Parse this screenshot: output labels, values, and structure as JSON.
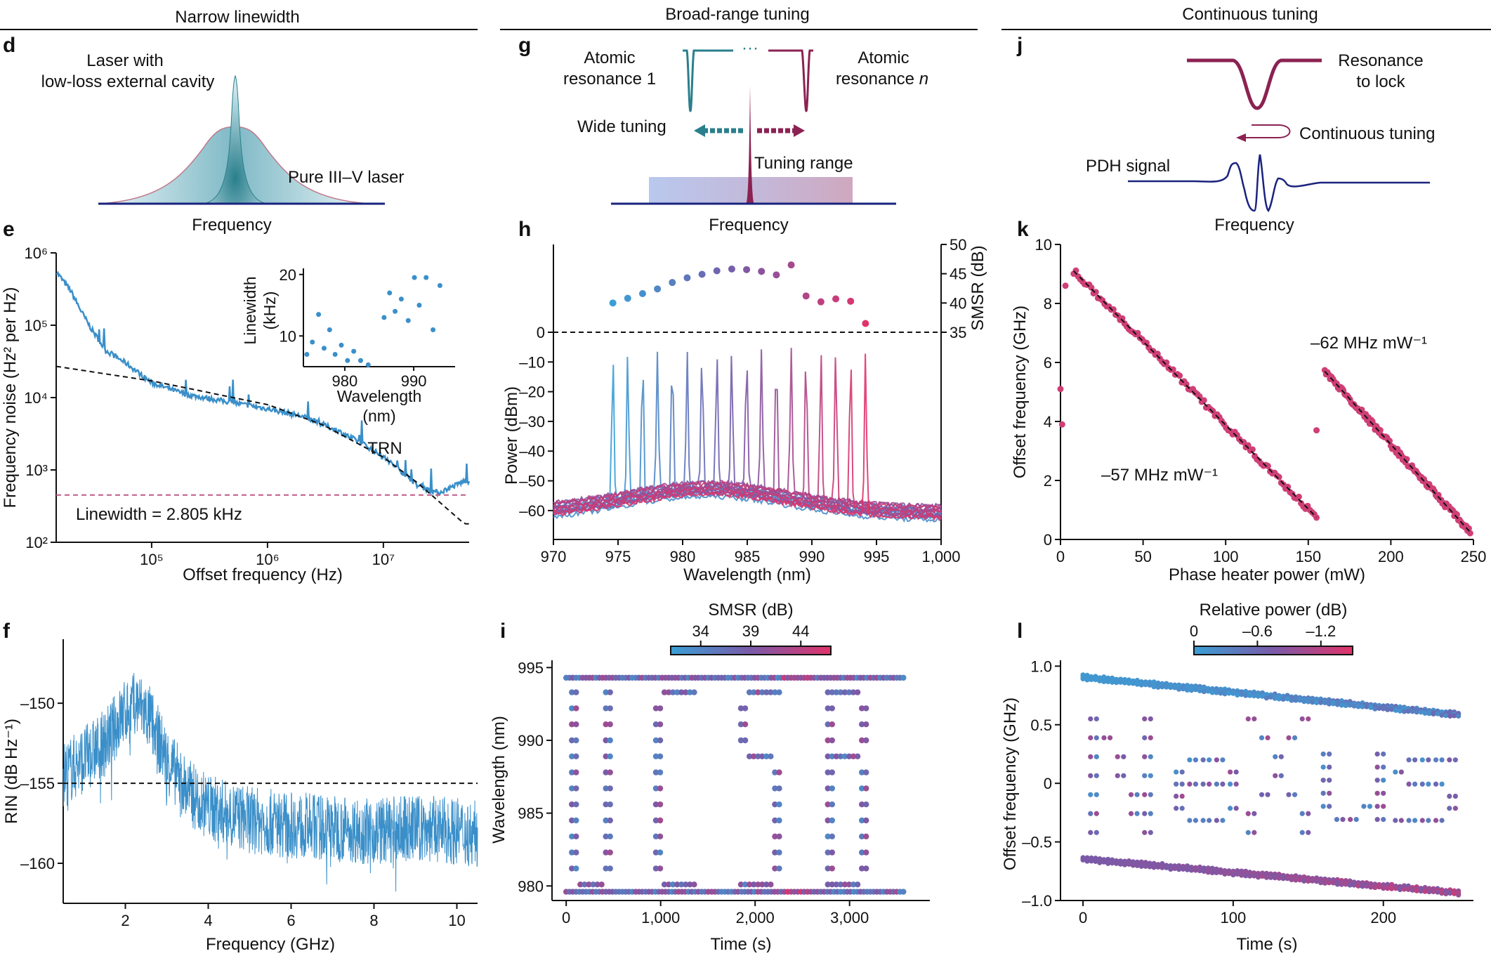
{
  "sections": [
    "Narrow linewidth",
    "Broad-range tuning",
    "Continuous tuning"
  ],
  "panel_letters": [
    "d",
    "e",
    "f",
    "g",
    "h",
    "i",
    "j",
    "k",
    "l"
  ],
  "schematics": {
    "d": {
      "laser_label_1": "Laser with",
      "laser_label_2": "low-loss external cavity",
      "pure_label": "Pure III–V laser",
      "xlabel": "Frequency"
    },
    "g": {
      "res1_a": "Atomic",
      "res1_b": "resonance 1",
      "resn_a": "Atomic",
      "resn_b": "resonance",
      "resn_n": "n",
      "dots": "···",
      "wide": "Wide tuning",
      "range": "Tuning range",
      "xlabel": "Frequency"
    },
    "j": {
      "res_a": "Resonance",
      "res_b": "to lock",
      "cont": "Continuous tuning",
      "pdh": "PDH signal",
      "xlabel": "Frequency"
    }
  },
  "colors": {
    "teal": "#2a7f8c",
    "maroon": "#8b2252",
    "navy": "#1a237e",
    "blue": "#3a8fc9",
    "pink": "#d6336c",
    "purple": "#7a5aa8"
  },
  "chart_data": [
    {
      "id": "e",
      "type": "line",
      "xlabel": "Offset frequency (Hz)",
      "ylabel": "Frequency noise (Hz² per Hz)",
      "xscale": "log",
      "yscale": "log",
      "xlim": [
        15000,
        55000000
      ],
      "ylim": [
        100,
        1000000
      ],
      "xticks": [
        "10⁵",
        "10⁶",
        "10⁷"
      ],
      "yticks": [
        "10²",
        "10³",
        "10⁴",
        "10⁵",
        "10⁶"
      ],
      "series": [
        {
          "values_x": [
            15000,
            20000,
            25000,
            30000,
            40000,
            60000,
            100000,
            200000,
            500000,
            1000000,
            2000000,
            4000000,
            7000000,
            10000000,
            15000000,
            20000000,
            30000000,
            50000000
          ],
          "values_y": [
            550000,
            300000,
            150000,
            90000,
            45000,
            30000,
            16000,
            11000,
            8500,
            7000,
            5500,
            3500,
            2200,
            1500,
            900,
            600,
            480,
            700
          ]
        }
      ],
      "trn_fit": {
        "x": [
          15000,
          100000,
          1000000,
          3000000,
          10000000,
          20000000,
          50000000
        ],
        "y": [
          27000,
          17000,
          8000,
          4200,
          1500,
          650,
          180
        ]
      },
      "linewidth_level": 450,
      "annotations": {
        "trn": "TRN",
        "linewidth": "Linewidth = 2.805 kHz"
      },
      "inset": {
        "xlabel": "Wavelength",
        "xlabel2": "(nm)",
        "ylabel": "Linewidth",
        "ylabel2": "(kHz)",
        "xticks": [
          "980",
          "990"
        ],
        "yticks": [
          "10",
          "20"
        ],
        "xlim": [
          974,
          996
        ],
        "ylim": [
          5,
          21
        ],
        "points": [
          [
            974.5,
            7
          ],
          [
            975.3,
            9
          ],
          [
            976.2,
            13.5
          ],
          [
            977,
            8
          ],
          [
            977.8,
            11
          ],
          [
            978.6,
            7
          ],
          [
            979.5,
            8.5
          ],
          [
            980.4,
            6
          ],
          [
            981.3,
            7.5
          ],
          [
            982.3,
            6
          ],
          [
            983.4,
            5.3
          ],
          [
            985.7,
            13
          ],
          [
            986.5,
            17
          ],
          [
            987.3,
            14
          ],
          [
            988.2,
            16
          ],
          [
            989.2,
            12.5
          ],
          [
            990.1,
            19.5
          ],
          [
            990.8,
            15
          ],
          [
            991.8,
            19.5
          ],
          [
            992.8,
            11
          ],
          [
            993.8,
            18.2
          ]
        ]
      }
    },
    {
      "id": "f",
      "type": "line",
      "xlabel": "Frequency (GHz)",
      "ylabel": "RIN (dB Hz⁻¹)",
      "xlim": [
        0.5,
        10.5
      ],
      "ylim": [
        -162.5,
        -146
      ],
      "xticks": [
        "2",
        "4",
        "6",
        "8",
        "10"
      ],
      "yticks": [
        "–150",
        "–155",
        "–160"
      ],
      "envelope": {
        "x": [
          0.5,
          1,
          1.5,
          2,
          2.3,
          2.6,
          3,
          3.5,
          4,
          5,
          6,
          7,
          8,
          9,
          10,
          10.5
        ],
        "y": [
          -154.5,
          -153.5,
          -152.5,
          -150.5,
          -150,
          -151,
          -153.5,
          -155.5,
          -156.5,
          -157.3,
          -157.6,
          -157.8,
          -158,
          -157.8,
          -158,
          -158.2
        ]
      },
      "reference_level": -155
    },
    {
      "id": "h",
      "type": "line",
      "xlabel": "Wavelength (nm)",
      "ylabel": "Power (dBm)",
      "y2label": "SMSR (dB)",
      "xlim": [
        970,
        1000
      ],
      "ylim": [
        -65,
        0
      ],
      "xticks": [
        "970",
        "975",
        "980",
        "985",
        "990",
        "995",
        "1,000"
      ],
      "yticks": [
        "0",
        "–10",
        "–20",
        "–30",
        "–40",
        "–50",
        "–60"
      ],
      "y2ticks": [
        "35",
        "40",
        "45",
        "50"
      ],
      "y2lim": [
        35,
        50
      ],
      "peaks_nm": [
        974.6,
        975.75,
        976.9,
        978.05,
        979.2,
        980.35,
        981.5,
        982.65,
        983.8,
        984.95,
        986.1,
        987.25,
        988.4,
        989.55,
        990.7,
        991.85,
        993.0,
        994.15
      ],
      "peaks_dbm": [
        -6.5,
        -6.5,
        -6.5,
        -6.5,
        -6.5,
        -6.0,
        -6.0,
        -6.0,
        -5.5,
        -5.5,
        -5.5,
        -5.5,
        -5.0,
        -5.0,
        -5.0,
        -5.0,
        -5.5,
        -6.5
      ],
      "smsr_db": [
        40,
        40.8,
        41.6,
        42.4,
        43.5,
        44.3,
        44.9,
        45.5,
        45.8,
        45.7,
        45.4,
        44.8,
        46.5,
        41.2,
        40.2,
        40.7,
        40.3,
        36.5
      ]
    },
    {
      "id": "i",
      "type": "scatter",
      "xlabel": "Time (s)",
      "ylabel": "Wavelength (nm)",
      "xlim": [
        -150,
        3850
      ],
      "ylim": [
        979,
        995.5
      ],
      "xticks": [
        "0",
        "1,000",
        "2,000",
        "3,000"
      ],
      "yticks": [
        "980",
        "985",
        "990",
        "995"
      ],
      "colorbar": {
        "label": "SMSR (dB)",
        "ticks": [
          "34",
          "39",
          "44"
        ],
        "min": 31,
        "max": 47
      },
      "text_shape": "UCSB"
    },
    {
      "id": "k",
      "type": "scatter",
      "xlabel": "Phase heater power (mW)",
      "ylabel": "Offset frequency (GHz)",
      "xlim": [
        0,
        250
      ],
      "ylim": [
        0,
        10
      ],
      "xticks": [
        "0",
        "50",
        "100",
        "150",
        "200",
        "250"
      ],
      "yticks": [
        "0",
        "2",
        "4",
        "6",
        "8",
        "10"
      ],
      "segments": [
        {
          "x": [
            8,
            155
          ],
          "y": [
            9.1,
            0.75
          ],
          "slope_label": "–57 MHz mW⁻¹"
        },
        {
          "x": [
            160,
            248
          ],
          "y": [
            5.7,
            0.25
          ],
          "slope_label": "–62 MHz mW⁻¹"
        }
      ],
      "outliers": [
        [
          0,
          5.1
        ],
        [
          1,
          3.9
        ],
        [
          155,
          3.7
        ],
        [
          3,
          8.6
        ]
      ]
    },
    {
      "id": "l",
      "type": "scatter",
      "xlabel": "Time (s)",
      "ylabel": "Offset frequency (GHz)",
      "xlim": [
        -15,
        260
      ],
      "ylim": [
        -1.0,
        1.05
      ],
      "xticks": [
        "0",
        "100",
        "200"
      ],
      "yticks": [
        "1.0",
        "0.5",
        "0",
        "–0.5",
        "–1.0"
      ],
      "colorbar": {
        "label": "Relative power (dB)",
        "ticks": [
          "0",
          "–0.6",
          "–1.2"
        ],
        "min": 0,
        "max": -1.5
      },
      "text_shape": "NeXus",
      "upper_band": {
        "x": [
          0,
          250
        ],
        "y": [
          0.92,
          0.6
        ]
      },
      "lower_band": {
        "x": [
          0,
          250
        ],
        "y": [
          -0.63,
          -0.92
        ]
      }
    }
  ]
}
